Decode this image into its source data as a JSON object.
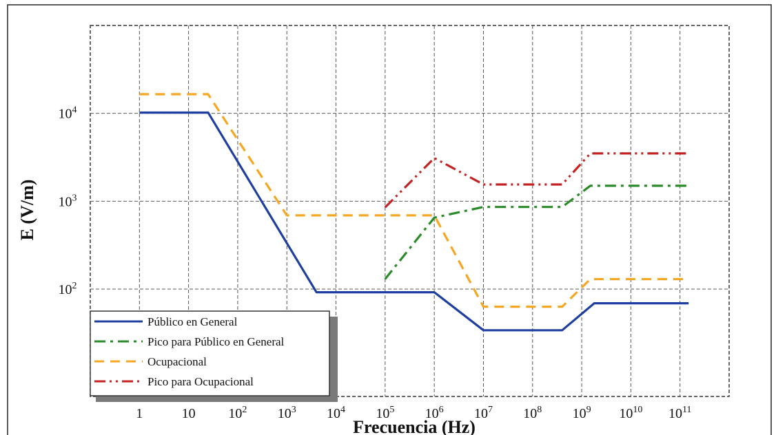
{
  "chart_data": {
    "type": "line",
    "title": "",
    "xlabel": "Frecuencia (Hz)",
    "ylabel": "E (V/m)",
    "x_scale": "log",
    "y_scale": "log",
    "xlim": [
      0.1,
      1000000000000
    ],
    "ylim": [
      6,
      100000
    ],
    "grid": true,
    "legend_position": "bottom-left",
    "x_ticks": [
      {
        "value": 1,
        "base": "1",
        "exp": ""
      },
      {
        "value": 10,
        "base": "10",
        "exp": ""
      },
      {
        "value": 100,
        "base": "10",
        "exp": "2"
      },
      {
        "value": 1000,
        "base": "10",
        "exp": "3"
      },
      {
        "value": 10000,
        "base": "10",
        "exp": "4"
      },
      {
        "value": 100000,
        "base": "10",
        "exp": "5"
      },
      {
        "value": 1000000,
        "base": "10",
        "exp": "6"
      },
      {
        "value": 10000000,
        "base": "10",
        "exp": "7"
      },
      {
        "value": 100000000,
        "base": "10",
        "exp": "8"
      },
      {
        "value": 1000000000,
        "base": "10",
        "exp": "9"
      },
      {
        "value": 10000000000,
        "base": "10",
        "exp": "10"
      },
      {
        "value": 100000000000,
        "base": "10",
        "exp": "11"
      }
    ],
    "y_ticks": [
      {
        "value": 100,
        "base": "10",
        "exp": "2"
      },
      {
        "value": 1000,
        "base": "10",
        "exp": "3"
      },
      {
        "value": 10000,
        "base": "10",
        "exp": "4"
      }
    ],
    "series": [
      {
        "name": "Público en General",
        "color": "#1f3fa0",
        "dash": "solid",
        "points": [
          [
            1,
            10200
          ],
          [
            25,
            10200
          ],
          [
            4000,
            92
          ],
          [
            1000000,
            92
          ],
          [
            10000000,
            34
          ],
          [
            400000000,
            34
          ],
          [
            1800000000,
            69
          ],
          [
            150000000000,
            69
          ]
        ]
      },
      {
        "name": "Pico para Público en General",
        "color": "#2a8a2a",
        "dash": "dashdot",
        "points": [
          [
            100000,
            130
          ],
          [
            1000000,
            650
          ],
          [
            10000000,
            860
          ],
          [
            400000000,
            860
          ],
          [
            1500000000,
            1500
          ],
          [
            150000000000,
            1500
          ]
        ]
      },
      {
        "name": "Ocupacional",
        "color": "#f5a623",
        "dash": "dashed",
        "points": [
          [
            1,
            16500
          ],
          [
            25,
            16500
          ],
          [
            1000,
            690
          ],
          [
            1000000,
            690
          ],
          [
            10000000,
            63
          ],
          [
            400000000,
            63
          ],
          [
            1500000000,
            130
          ],
          [
            150000000000,
            130
          ]
        ]
      },
      {
        "name": "Pico para Ocupacional",
        "color": "#c42222",
        "dash": "dashdotdot",
        "points": [
          [
            100000,
            850
          ],
          [
            1000000,
            3100
          ],
          [
            10000000,
            1550
          ],
          [
            400000000,
            1550
          ],
          [
            1500000000,
            3500
          ],
          [
            150000000000,
            3500
          ]
        ]
      }
    ]
  }
}
